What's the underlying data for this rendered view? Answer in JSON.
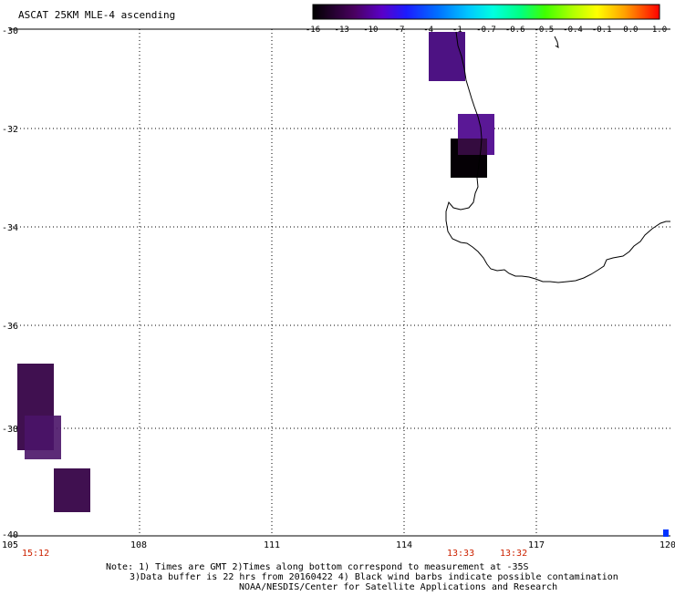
{
  "title": "ASCAT 25KM MLE-4 ascending",
  "colorbar": {
    "labels": [
      "-16",
      "-13",
      "-10",
      "-7",
      "-4",
      "-1",
      "-0.7",
      "-0.6",
      "-0.5",
      "-0.4",
      "-0.1",
      "0.0",
      "1.0"
    ]
  },
  "axes": {
    "lat_labels": [
      "-30",
      "-32",
      "-34",
      "-36",
      "-38",
      "-40"
    ],
    "lon_labels": [
      "105",
      "108",
      "111",
      "114",
      "117",
      "120"
    ]
  },
  "times": [
    "15:12",
    "13:33",
    "13:32"
  ],
  "notes": [
    "Note: 1) Times are GMT 2)Times along bottom correspond to measurement at -35S",
    "3)Data buffer is 22 hrs from 20160422 4) Black wind barbs indicate possible contamination",
    "NOAA/NESDIS/Center for Satellite Applications and Research"
  ],
  "colors": {
    "time_label": "#cc2200",
    "indigo": "#4d1283",
    "indigo_light": "#5a1896",
    "dark_purple": "#401050",
    "black_patch": "#050005",
    "marker_blue": "#0033ff"
  }
}
